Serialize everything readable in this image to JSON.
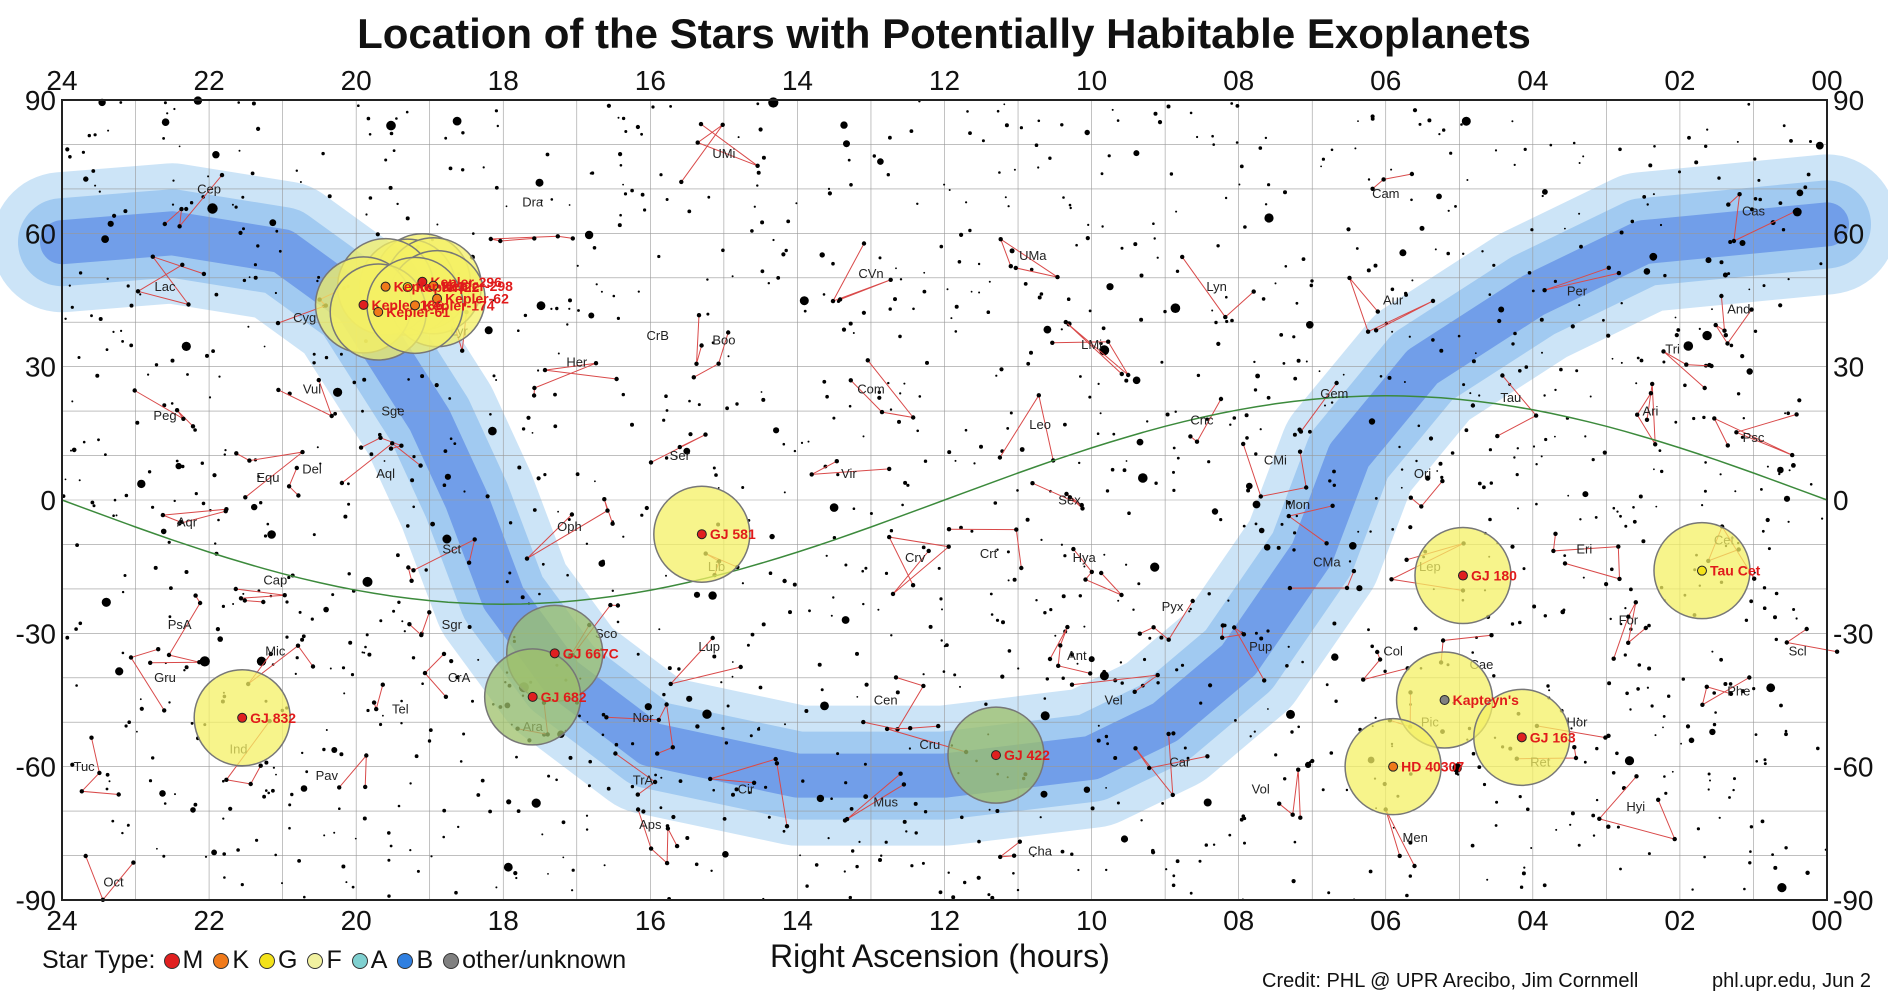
{
  "title": "Location of the Stars with Potentially Habitable Exoplanets",
  "x_axis": {
    "title": "Right Ascension (hours)",
    "ticks": [
      "24",
      "22",
      "20",
      "18",
      "16",
      "14",
      "12",
      "10",
      "08",
      "06",
      "04",
      "02",
      "00"
    ],
    "range_hours": [
      24,
      0
    ]
  },
  "y_axis": {
    "ticks": [
      "90",
      "60",
      "30",
      "0",
      "-30",
      "-60",
      "-90"
    ],
    "range_deg": [
      -90,
      90
    ]
  },
  "legend": {
    "label": "Star Type:",
    "items": [
      {
        "label": "M",
        "color": "#e02020"
      },
      {
        "label": "K",
        "color": "#f07a1a"
      },
      {
        "label": "G",
        "color": "#f3e21a"
      },
      {
        "label": "F",
        "color": "#f1f1a0"
      },
      {
        "label": "A",
        "color": "#7fd0d0"
      },
      {
        "label": "B",
        "color": "#2f7fe0"
      },
      {
        "label": "other/unknown",
        "color": "#808080"
      }
    ]
  },
  "credit": "Credit: PHL @ UPR Arecibo, Jim Cornmell",
  "site": "phl.upr.edu, Jun 2",
  "colors": {
    "milky_way_outer": "#c9e3f7",
    "milky_way_mid": "#9ec8f0",
    "milky_way_inner": "#6f9be8",
    "constellation_lines": "#d94a4a",
    "ecliptic": "#3c8a3c",
    "grid": "#999999",
    "highlight_yellow": "#f4f064",
    "highlight_green": "#9ec06a",
    "planet_label": "#e01b1b"
  },
  "planets": [
    {
      "name": "Kepler-296",
      "ra": 19.1,
      "dec": 49.1,
      "type": "M",
      "circle": "yellow"
    },
    {
      "name": "Kepler-22",
      "ra": 19.3,
      "dec": 47.9,
      "type": "G",
      "circle": "yellow"
    },
    {
      "name": "Kepler-298",
      "ra": 18.95,
      "dec": 48.2,
      "type": "K",
      "circle": "yellow"
    },
    {
      "name": "Kepler-283",
      "ra": 19.6,
      "dec": 48.0,
      "type": "K",
      "circle": "yellow"
    },
    {
      "name": "Kepler-62",
      "ra": 18.9,
      "dec": 45.3,
      "type": "K",
      "circle": "yellow"
    },
    {
      "name": "Kepler-186",
      "ra": 19.9,
      "dec": 43.9,
      "type": "M",
      "circle": "yellow"
    },
    {
      "name": "Kepler-61",
      "ra": 19.7,
      "dec": 42.3,
      "type": "K",
      "circle": "yellow"
    },
    {
      "name": "Kepler-174",
      "ra": 19.2,
      "dec": 43.8,
      "type": "K",
      "circle": "yellow"
    },
    {
      "name": "GJ 581",
      "ra": 15.3,
      "dec": -7.7,
      "type": "M",
      "circle": "yellow"
    },
    {
      "name": "GJ 667C",
      "ra": 17.3,
      "dec": -34.5,
      "type": "M",
      "circle": "green"
    },
    {
      "name": "GJ 682",
      "ra": 17.6,
      "dec": -44.3,
      "type": "M",
      "circle": "green"
    },
    {
      "name": "GJ 832",
      "ra": 21.55,
      "dec": -49.0,
      "type": "M",
      "circle": "yellow"
    },
    {
      "name": "GJ 422",
      "ra": 11.3,
      "dec": -57.4,
      "type": "M",
      "circle": "green"
    },
    {
      "name": "GJ 180",
      "ra": 4.95,
      "dec": -17.0,
      "type": "M",
      "circle": "yellow"
    },
    {
      "name": "Tau Cet",
      "ra": 1.7,
      "dec": -15.9,
      "type": "G",
      "circle": "yellow"
    },
    {
      "name": "Kapteyn's",
      "ra": 5.2,
      "dec": -45.0,
      "type": "other",
      "circle": "yellow"
    },
    {
      "name": "GJ 163",
      "ra": 4.15,
      "dec": -53.4,
      "type": "M",
      "circle": "yellow"
    },
    {
      "name": "HD 40307",
      "ra": 5.9,
      "dec": -60.0,
      "type": "K",
      "circle": "yellow"
    }
  ],
  "constellations": [
    {
      "name": "UMi",
      "ra": 15.0,
      "dec": 77
    },
    {
      "name": "Cep",
      "ra": 22.0,
      "dec": 69
    },
    {
      "name": "Dra",
      "ra": 17.6,
      "dec": 66
    },
    {
      "name": "Cam",
      "ra": 6.0,
      "dec": 68
    },
    {
      "name": "Cas",
      "ra": 1.0,
      "dec": 64
    },
    {
      "name": "CVn",
      "ra": 13.0,
      "dec": 50
    },
    {
      "name": "UMa",
      "ra": 10.8,
      "dec": 54
    },
    {
      "name": "Lyn",
      "ra": 8.3,
      "dec": 47
    },
    {
      "name": "Lac",
      "ra": 22.6,
      "dec": 47
    },
    {
      "name": "Cyg",
      "ra": 20.7,
      "dec": 40
    },
    {
      "name": "Lyr",
      "ra": 18.6,
      "dec": 37
    },
    {
      "name": "Aur",
      "ra": 5.9,
      "dec": 44
    },
    {
      "name": "Per",
      "ra": 3.4,
      "dec": 46
    },
    {
      "name": "And",
      "ra": 1.2,
      "dec": 42
    },
    {
      "name": "CrB",
      "ra": 15.9,
      "dec": 36
    },
    {
      "name": "Boo",
      "ra": 15.0,
      "dec": 35
    },
    {
      "name": "LMi",
      "ra": 10.0,
      "dec": 34
    },
    {
      "name": "Tri",
      "ra": 2.1,
      "dec": 33
    },
    {
      "name": "Her",
      "ra": 17.0,
      "dec": 30
    },
    {
      "name": "Vul",
      "ra": 20.6,
      "dec": 24
    },
    {
      "name": "Com",
      "ra": 13.0,
      "dec": 24
    },
    {
      "name": "Tau",
      "ra": 4.3,
      "dec": 22
    },
    {
      "name": "Peg",
      "ra": 22.6,
      "dec": 18
    },
    {
      "name": "Sge",
      "ra": 19.5,
      "dec": 19
    },
    {
      "name": "Ari",
      "ra": 2.4,
      "dec": 19
    },
    {
      "name": "Gem",
      "ra": 6.7,
      "dec": 23
    },
    {
      "name": "Cnc",
      "ra": 8.5,
      "dec": 17
    },
    {
      "name": "Leo",
      "ra": 10.7,
      "dec": 16
    },
    {
      "name": "Psc",
      "ra": 1.0,
      "dec": 13
    },
    {
      "name": "Ser",
      "ra": 15.6,
      "dec": 9
    },
    {
      "name": "CMi",
      "ra": 7.5,
      "dec": 8
    },
    {
      "name": "Equ",
      "ra": 21.2,
      "dec": 4
    },
    {
      "name": "Del",
      "ra": 20.6,
      "dec": 6
    },
    {
      "name": "Aql",
      "ra": 19.6,
      "dec": 5
    },
    {
      "name": "Vir",
      "ra": 13.3,
      "dec": 5
    },
    {
      "name": "Ori",
      "ra": 5.5,
      "dec": 5
    },
    {
      "name": "Sex",
      "ra": 10.3,
      "dec": -1
    },
    {
      "name": "Mon",
      "ra": 7.2,
      "dec": -2
    },
    {
      "name": "Aqr",
      "ra": 22.3,
      "dec": -6
    },
    {
      "name": "Oph",
      "ra": 17.1,
      "dec": -7
    },
    {
      "name": "Sct",
      "ra": 18.7,
      "dec": -12
    },
    {
      "name": "Crv",
      "ra": 12.4,
      "dec": -14
    },
    {
      "name": "Crt",
      "ra": 11.4,
      "dec": -13
    },
    {
      "name": "Hya",
      "ra": 10.1,
      "dec": -14
    },
    {
      "name": "Lib",
      "ra": 15.1,
      "dec": -16
    },
    {
      "name": "Eri",
      "ra": 3.3,
      "dec": -12
    },
    {
      "name": "Lep",
      "ra": 5.4,
      "dec": -16
    },
    {
      "name": "CMa",
      "ra": 6.8,
      "dec": -15
    },
    {
      "name": "Cet",
      "ra": 1.4,
      "dec": -10
    },
    {
      "name": "Cap",
      "ra": 21.1,
      "dec": -19
    },
    {
      "name": "PsA",
      "ra": 22.4,
      "dec": -29
    },
    {
      "name": "Sgr",
      "ra": 18.7,
      "dec": -29
    },
    {
      "name": "Pyx",
      "ra": 8.9,
      "dec": -25
    },
    {
      "name": "For",
      "ra": 2.7,
      "dec": -28
    },
    {
      "name": "Sco",
      "ra": 16.6,
      "dec": -31
    },
    {
      "name": "Lup",
      "ra": 15.2,
      "dec": -34
    },
    {
      "name": "Pup",
      "ra": 7.7,
      "dec": -34
    },
    {
      "name": "Col",
      "ra": 5.9,
      "dec": -35
    },
    {
      "name": "Mic",
      "ra": 21.1,
      "dec": -35
    },
    {
      "name": "Ant",
      "ra": 10.2,
      "dec": -36
    },
    {
      "name": "Scl",
      "ra": 0.4,
      "dec": -35
    },
    {
      "name": "Cae",
      "ra": 4.7,
      "dec": -38
    },
    {
      "name": "CrA",
      "ra": 18.6,
      "dec": -41
    },
    {
      "name": "Gru",
      "ra": 22.6,
      "dec": -41
    },
    {
      "name": "Phe",
      "ra": 1.2,
      "dec": -44
    },
    {
      "name": "Cen",
      "ra": 12.8,
      "dec": -46
    },
    {
      "name": "Vel",
      "ra": 9.7,
      "dec": -46
    },
    {
      "name": "Tel",
      "ra": 19.4,
      "dec": -48
    },
    {
      "name": "Nor",
      "ra": 16.1,
      "dec": -50
    },
    {
      "name": "Ara",
      "ra": 17.6,
      "dec": -52
    },
    {
      "name": "Pic",
      "ra": 5.4,
      "dec": -51
    },
    {
      "name": "Hor",
      "ra": 3.4,
      "dec": -51
    },
    {
      "name": "Ind",
      "ra": 21.6,
      "dec": -57
    },
    {
      "name": "Cru",
      "ra": 12.2,
      "dec": -56
    },
    {
      "name": "Car",
      "ra": 8.8,
      "dec": -60
    },
    {
      "name": "Ret",
      "ra": 3.9,
      "dec": -60
    },
    {
      "name": "Tuc",
      "ra": 23.7,
      "dec": -61
    },
    {
      "name": "Pav",
      "ra": 20.4,
      "dec": -63
    },
    {
      "name": "TrA",
      "ra": 16.1,
      "dec": -64
    },
    {
      "name": "Cir",
      "ra": 14.7,
      "dec": -66
    },
    {
      "name": "Vol",
      "ra": 7.7,
      "dec": -66
    },
    {
      "name": "Mus",
      "ra": 12.8,
      "dec": -69
    },
    {
      "name": "Hyi",
      "ra": 2.6,
      "dec": -70
    },
    {
      "name": "Aps",
      "ra": 16.0,
      "dec": -74
    },
    {
      "name": "Men",
      "ra": 5.6,
      "dec": -77
    },
    {
      "name": "Cha",
      "ra": 10.7,
      "dec": -80
    },
    {
      "name": "Oct",
      "ra": 23.3,
      "dec": -87
    }
  ]
}
